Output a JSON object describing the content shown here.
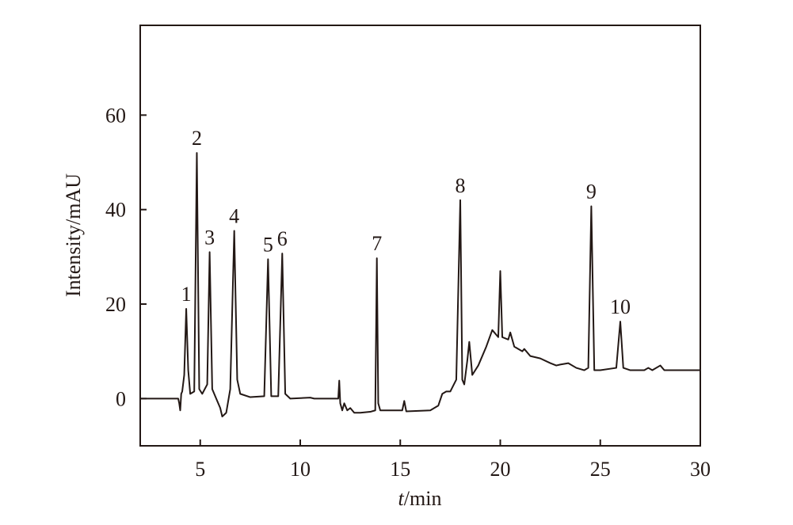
{
  "chart_data": {
    "type": "line",
    "xlabel": "t/min",
    "ylabel": "Intensity/mAU",
    "color": "#231815",
    "xlim": [
      2,
      30
    ],
    "ylim": [
      -10,
      79
    ],
    "xticks": [
      5,
      10,
      15,
      20,
      25,
      30
    ],
    "yticks": [
      0,
      20,
      40,
      60
    ],
    "x": [
      2,
      3.9,
      3.95,
      4.0,
      4.05,
      4.1,
      4.2,
      4.3,
      4.4,
      4.5,
      4.7,
      4.83,
      4.95,
      5.1,
      5.35,
      5.47,
      5.6,
      5.8,
      6.0,
      6.1,
      6.3,
      6.5,
      6.7,
      6.85,
      7.0,
      7.5,
      8.2,
      8.39,
      8.55,
      8.9,
      9.1,
      9.25,
      9.5,
      10.5,
      10.7,
      11.9,
      11.95,
      12.0,
      12.1,
      12.2,
      12.35,
      12.5,
      12.7,
      13,
      13.5,
      13.75,
      13.83,
      13.9,
      14,
      15.1,
      15.2,
      15.3,
      16.5,
      16.9,
      17.1,
      17.3,
      17.5,
      17.8,
      18.0,
      18.1,
      18.2,
      18.35,
      18.45,
      18.6,
      18.9,
      19.3,
      19.6,
      19.9,
      20.0,
      20.1,
      20.4,
      20.5,
      20.7,
      21.1,
      21.2,
      21.5,
      22,
      22.5,
      22.8,
      23,
      23.4,
      23.8,
      24.2,
      24.4,
      24.55,
      24.7,
      25.0,
      25.8,
      26.0,
      26.15,
      26.5,
      27.2,
      27.4,
      27.6,
      28.0,
      28.2,
      29,
      30
    ],
    "values": [
      0,
      0,
      -1,
      -2.5,
      1,
      1.5,
      5,
      19,
      6,
      1,
      1.5,
      52,
      2,
      1,
      3,
      31,
      2,
      0,
      -2,
      -3.8,
      -3,
      2,
      35.5,
      4,
      1,
      0.3,
      0.5,
      29.5,
      0.5,
      0.5,
      30.7,
      1,
      0,
      0.2,
      0,
      0,
      3.8,
      -1,
      -2.5,
      -1,
      -2.5,
      -2,
      -3,
      -3,
      -2.8,
      -2.5,
      29.7,
      -1,
      -2.5,
      -2.5,
      -0.5,
      -2.7,
      -2.5,
      -1.5,
      1,
      1.5,
      1.5,
      4,
      42,
      4,
      3,
      8,
      12,
      5,
      7,
      11,
      14.5,
      13,
      27,
      13,
      12.5,
      14,
      11,
      10,
      10.5,
      9,
      8.5,
      7.5,
      7,
      7.2,
      7.5,
      6.5,
      6,
      6.5,
      40.7,
      6,
      6,
      6.5,
      16.3,
      6.5,
      6,
      6,
      6.5,
      6,
      7,
      6,
      6,
      6
    ],
    "annotations": [
      {
        "text": "1",
        "x": 4.3,
        "y": 19
      },
      {
        "text": "2",
        "x": 4.83,
        "y": 52
      },
      {
        "text": "3",
        "x": 5.47,
        "y": 31
      },
      {
        "text": "4",
        "x": 6.7,
        "y": 35.5
      },
      {
        "text": "5",
        "x": 8.39,
        "y": 29.5
      },
      {
        "text": "6",
        "x": 9.1,
        "y": 30.7
      },
      {
        "text": "7",
        "x": 13.83,
        "y": 29.7
      },
      {
        "text": "8",
        "x": 18.0,
        "y": 42
      },
      {
        "text": "9",
        "x": 24.55,
        "y": 40.7
      },
      {
        "text": "10",
        "x": 26.0,
        "y": 16.3
      }
    ]
  }
}
